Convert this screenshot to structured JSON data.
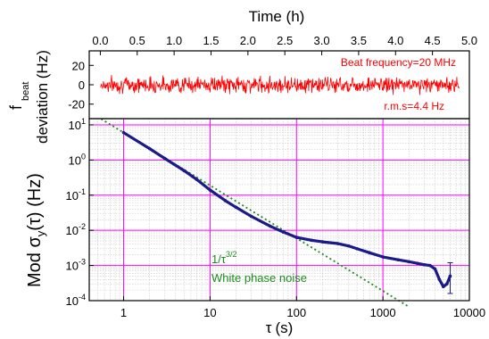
{
  "chart_data": [
    {
      "type": "line",
      "panel": "top",
      "xlabel": "Time (h)",
      "ylabel_line1": "f",
      "ylabel_sub": "beat",
      "ylabel_line2": "deviation (Hz)",
      "xlim": [
        -0.15,
        5.0
      ],
      "ylim": [
        -35,
        35
      ],
      "xticks": [
        0.0,
        0.5,
        1.0,
        1.5,
        2.0,
        2.5,
        3.0,
        3.5,
        4.0,
        4.5,
        5.0
      ],
      "xtick_labels": [
        "0.0",
        "0.5",
        "1.0",
        "1.5",
        "2.0",
        "2.5",
        "3.0",
        "3.5",
        "4.0",
        "4.5",
        "5.0"
      ],
      "yticks": [
        -20,
        0,
        20
      ],
      "ytick_labels": [
        "-20",
        "0",
        "20"
      ],
      "x_axis_position": "top",
      "grid": false,
      "series": [
        {
          "color": "#ff0000",
          "x_range": [
            0.0,
            4.87
          ],
          "mean": 0,
          "envelope": [
            -12,
            12
          ]
        }
      ],
      "annotations": [
        {
          "text": "Beat frequency=20 MHz",
          "color": "#ff0000"
        },
        {
          "text": "r.m.s=4.4 Hz",
          "color": "#ff0000"
        }
      ]
    },
    {
      "type": "scatter",
      "panel": "bottom",
      "xlabel_symbol": "τ",
      "xlabel_unit": "(s)",
      "ylabel_main": "Mod σ",
      "ylabel_sub": "y",
      "ylabel_tail": "(τ) (Hz)",
      "xscale": "log",
      "yscale": "log",
      "xlim": [
        0.4,
        10000
      ],
      "ylim": [
        0.0001,
        15
      ],
      "xticks": [
        1,
        10,
        100,
        1000,
        10000
      ],
      "xtick_labels": [
        "1",
        "10",
        "100",
        "1000",
        "10000"
      ],
      "yticks": [
        0.0001,
        0.001,
        0.01,
        0.1,
        1,
        10
      ],
      "ytick_exponents": [
        "-4",
        "-3",
        "-2",
        "-1",
        "0",
        "1"
      ],
      "ytick_base": "10",
      "grid": true,
      "grid_color": "#ff00ff",
      "series": [
        {
          "color": "#1a1a8c",
          "x": [
            1,
            2,
            3,
            5,
            7,
            10,
            15,
            20,
            30,
            50,
            70,
            100,
            150,
            200,
            300,
            400,
            500,
            700,
            1000,
            1500,
            2000,
            2500,
            3000,
            3500,
            4000,
            4500,
            5000,
            5500,
            6000
          ],
          "y": [
            6,
            2.1,
            1.1,
            0.5,
            0.28,
            0.14,
            0.07,
            0.045,
            0.025,
            0.013,
            0.009,
            0.0063,
            0.0052,
            0.0047,
            0.0042,
            0.0036,
            0.003,
            0.0023,
            0.00175,
            0.00145,
            0.00128,
            0.00115,
            0.00105,
            0.001,
            0.0008,
            0.0004,
            0.00025,
            0.0003,
            0.0005
          ]
        },
        {
          "name": "1/τ^3/2",
          "color": "#1a8c1a",
          "dashed": true,
          "x": [
            0.55,
            2000
          ],
          "y": [
            14.7,
            6.67e-05
          ]
        }
      ],
      "annotations": [
        {
          "text_base": "1/τ",
          "text_sup": "3/2",
          "color": "#1a8c1a"
        },
        {
          "text": "White phase noise",
          "color": "#1a8c1a"
        }
      ]
    }
  ]
}
